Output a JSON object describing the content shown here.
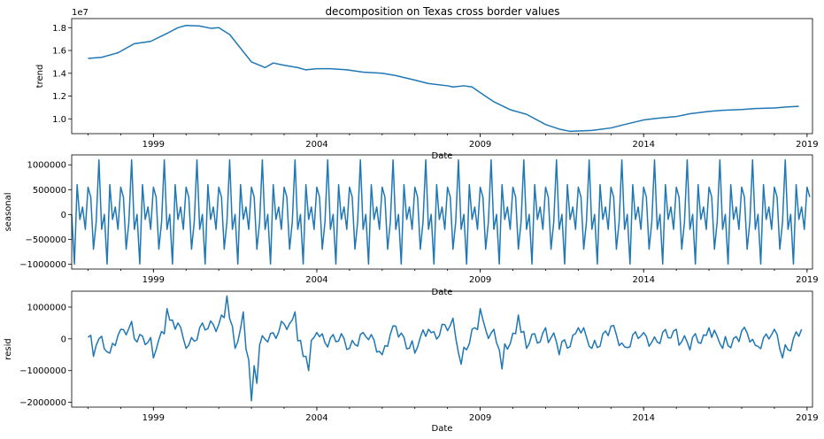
{
  "figure": {
    "title": "decomposition on Texas cross border values"
  },
  "chart_data": [
    {
      "type": "line",
      "ylabel": "trend",
      "xlabel": "Date",
      "offset_label": "1e7",
      "xlim": [
        "1996-07",
        "2019-03"
      ],
      "ylim": [
        8700000,
        18800000
      ],
      "yticks": [
        10000000,
        12000000,
        14000000,
        16000000,
        18000000
      ],
      "ytick_labels": [
        "1.0",
        "1.2",
        "1.4",
        "1.6",
        "1.8"
      ],
      "xticks": [
        "1999-01",
        "2004-01",
        "2009-01",
        "2014-01",
        "2019-01"
      ],
      "xtick_labels": [
        "1999",
        "2004",
        "2009",
        "2014",
        "2019"
      ],
      "series": [
        {
          "color": "#1f77b4",
          "points": [
            [
              "1997-01",
              15300000
            ],
            [
              "1997-06",
              15400000
            ],
            [
              "1997-12",
              15800000
            ],
            [
              "1998-03",
              16200000
            ],
            [
              "1998-06",
              16600000
            ],
            [
              "1998-12",
              16800000
            ],
            [
              "1999-06",
              17500000
            ],
            [
              "1999-10",
              18000000
            ],
            [
              "2000-01",
              18200000
            ],
            [
              "2000-06",
              18150000
            ],
            [
              "2000-10",
              17950000
            ],
            [
              "2001-01",
              18000000
            ],
            [
              "2001-05",
              17400000
            ],
            [
              "2001-08",
              16500000
            ],
            [
              "2002-01",
              15000000
            ],
            [
              "2002-06",
              14500000
            ],
            [
              "2002-09",
              14900000
            ],
            [
              "2003-01",
              14700000
            ],
            [
              "2003-06",
              14500000
            ],
            [
              "2003-09",
              14300000
            ],
            [
              "2004-01",
              14400000
            ],
            [
              "2004-06",
              14400000
            ],
            [
              "2004-12",
              14300000
            ],
            [
              "2005-06",
              14100000
            ],
            [
              "2006-01",
              14000000
            ],
            [
              "2006-06",
              13800000
            ],
            [
              "2007-01",
              13400000
            ],
            [
              "2007-06",
              13100000
            ],
            [
              "2008-01",
              12900000
            ],
            [
              "2008-03",
              12800000
            ],
            [
              "2008-07",
              12900000
            ],
            [
              "2008-10",
              12800000
            ],
            [
              "2009-01",
              12300000
            ],
            [
              "2009-06",
              11500000
            ],
            [
              "2009-12",
              10800000
            ],
            [
              "2010-06",
              10400000
            ],
            [
              "2011-01",
              9500000
            ],
            [
              "2011-06",
              9100000
            ],
            [
              "2011-10",
              8900000
            ],
            [
              "2012-06",
              8980000
            ],
            [
              "2013-01",
              9200000
            ],
            [
              "2013-06",
              9500000
            ],
            [
              "2014-01",
              9900000
            ],
            [
              "2014-06",
              10050000
            ],
            [
              "2015-01",
              10200000
            ],
            [
              "2015-06",
              10450000
            ],
            [
              "2016-01",
              10650000
            ],
            [
              "2016-06",
              10750000
            ],
            [
              "2017-01",
              10820000
            ],
            [
              "2017-06",
              10900000
            ],
            [
              "2018-01",
              10950000
            ],
            [
              "2018-06",
              11050000
            ],
            [
              "2018-10",
              11100000
            ]
          ]
        }
      ]
    },
    {
      "type": "line",
      "ylabel": "seasonal",
      "xlabel": "Date",
      "xlim": [
        "1996-07",
        "2019-03"
      ],
      "ylim": [
        -1100000,
        1200000
      ],
      "yticks": [
        -1000000,
        -500000,
        0,
        500000,
        1000000
      ],
      "ytick_labels": [
        "−1000000",
        "−500000",
        "0",
        "500000",
        "1000000"
      ],
      "xticks": [
        "1999-01",
        "2004-01",
        "2009-01",
        "2014-01",
        "2019-01"
      ],
      "xtick_labels": [
        "1999",
        "2004",
        "2009",
        "2014",
        "2019"
      ],
      "series": [
        {
          "color": "#1f77b4",
          "start": "1996-07",
          "end": "2019-02",
          "period_pattern": [
            0,
            -1000000,
            600000,
            -100000,
            150000,
            -300000,
            550000,
            350000,
            -700000,
            -150000,
            1100000,
            -300000
          ]
        }
      ]
    },
    {
      "type": "line",
      "ylabel": "resid",
      "xlabel": "Date",
      "xlim": [
        "1996-07",
        "2019-03"
      ],
      "ylim": [
        -2150000,
        1500000
      ],
      "yticks": [
        -2000000,
        -1000000,
        0,
        1000000
      ],
      "ytick_labels": [
        "−2000000",
        "−1000000",
        "0",
        "1000000"
      ],
      "xticks": [
        "1999-01",
        "2004-01",
        "2009-01",
        "2014-01",
        "2019-01"
      ],
      "xtick_labels": [
        "1999",
        "2004",
        "2009",
        "2014",
        "2019"
      ],
      "series": [
        {
          "color": "#1f77b4",
          "start": "1997-01",
          "end": "2018-11",
          "key_points": [
            [
              "1997-01",
              50000
            ],
            [
              "1997-03",
              -550000
            ],
            [
              "1997-05",
              0
            ],
            [
              "1997-09",
              -450000
            ],
            [
              "1998-01",
              300000
            ],
            [
              "1998-05",
              550000
            ],
            [
              "1999-01",
              -600000
            ],
            [
              "1999-06",
              950000
            ],
            [
              "1999-10",
              500000
            ],
            [
              "2000-01",
              -300000
            ],
            [
              "2000-06",
              350000
            ],
            [
              "2001-04",
              1350000
            ],
            [
              "2001-07",
              -300000
            ],
            [
              "2001-10",
              850000
            ],
            [
              "2002-01",
              -1950000
            ],
            [
              "2002-03",
              -1400000
            ],
            [
              "2002-05",
              100000
            ],
            [
              "2003-05",
              850000
            ],
            [
              "2003-08",
              -550000
            ],
            [
              "2003-10",
              -1000000
            ],
            [
              "2004-01",
              200000
            ],
            [
              "2005-01",
              -300000
            ],
            [
              "2005-06",
              200000
            ],
            [
              "2006-01",
              -500000
            ],
            [
              "2006-06",
              400000
            ],
            [
              "2007-01",
              -450000
            ],
            [
              "2007-06",
              300000
            ],
            [
              "2008-03",
              650000
            ],
            [
              "2008-06",
              -800000
            ],
            [
              "2008-11",
              350000
            ],
            [
              "2009-01",
              950000
            ],
            [
              "2009-06",
              300000
            ],
            [
              "2009-09",
              -950000
            ],
            [
              "2010-03",
              750000
            ],
            [
              "2010-06",
              -300000
            ],
            [
              "2011-01",
              350000
            ],
            [
              "2011-06",
              -500000
            ],
            [
              "2012-01",
              350000
            ],
            [
              "2012-06",
              -300000
            ],
            [
              "2013-01",
              400000
            ],
            [
              "2013-06",
              -250000
            ],
            [
              "2014-01",
              200000
            ],
            [
              "2014-06",
              -100000
            ],
            [
              "2015-01",
              300000
            ],
            [
              "2015-06",
              -350000
            ],
            [
              "2016-01",
              350000
            ],
            [
              "2016-06",
              -300000
            ],
            [
              "2017-01",
              250000
            ],
            [
              "2017-06",
              -200000
            ],
            [
              "2018-01",
              300000
            ],
            [
              "2018-04",
              -600000
            ],
            [
              "2018-11",
              300000
            ]
          ]
        }
      ]
    }
  ]
}
